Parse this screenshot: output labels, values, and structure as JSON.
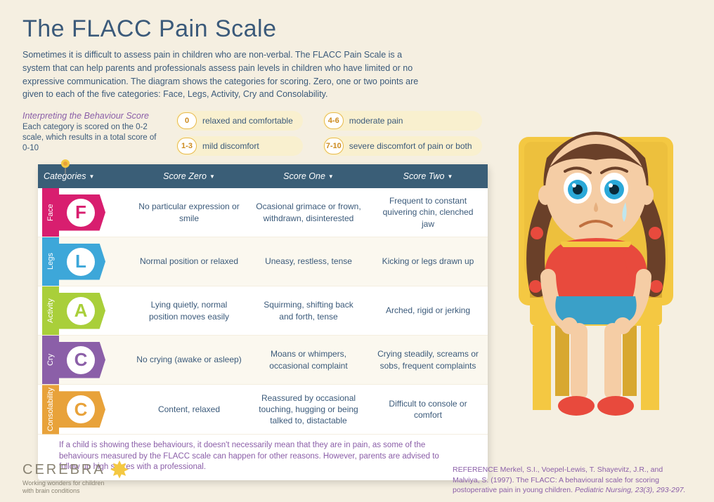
{
  "title": "The FLACC Pain Scale",
  "intro": "Sometimes it is difficult to assess pain in children who are non-verbal. The FLACC Pain Scale is a system that can help parents and professionals assess pain levels in children who have limited or no expressive communication. The diagram shows the categories for scoring. Zero, one or two points are given to each of the five categories: Face, Legs, Activity, Cry and Consolability.",
  "interpret": {
    "title": "Interpreting the Behaviour Score",
    "sub": "Each category is scored on the 0-2 scale, which results in a total score of 0-10"
  },
  "legend": [
    {
      "range": "0",
      "label": "relaxed and comfortable"
    },
    {
      "range": "4-6",
      "label": "moderate pain"
    },
    {
      "range": "1-3",
      "label": "mild discomfort"
    },
    {
      "range": "7-10",
      "label": "severe discomfort of pain or both"
    }
  ],
  "table": {
    "headers": [
      "Categories",
      "Score Zero",
      "Score One",
      "Score Two"
    ],
    "rows": [
      {
        "key": "face",
        "letter": "F",
        "name": "Face",
        "color": "#d81e6f",
        "alt": false,
        "s0": "No particular expression or smile",
        "s1": "Ocasional grimace or frown, withdrawn, disinterested",
        "s2": "Frequent to constant quivering chin, clenched jaw"
      },
      {
        "key": "legs",
        "letter": "L",
        "name": "Legs",
        "color": "#3da7d9",
        "alt": true,
        "s0": "Normal position or relaxed",
        "s1": "Uneasy, restless, tense",
        "s2": "Kicking or legs drawn up"
      },
      {
        "key": "activity",
        "letter": "A",
        "name": "Activity",
        "color": "#a9cf3a",
        "alt": false,
        "s0": "Lying quietly, normal position moves easily",
        "s1": "Squirming, shifting back and forth, tense",
        "s2": "Arched, rigid or jerking"
      },
      {
        "key": "cry",
        "letter": "C",
        "name": "Cry",
        "color": "#8b5fa8",
        "alt": true,
        "s0": "No crying (awake or asleep)",
        "s1": "Moans or whimpers, occasional complaint",
        "s2": "Crying steadily, screams or sobs, frequent complaints"
      },
      {
        "key": "cons",
        "letter": "C",
        "name": "Consolability",
        "color": "#e8a23a",
        "alt": false,
        "s0": "Content, relaxed",
        "s1": "Reassured by occasional touching, hugging or being talked to, distactable",
        "s2": "Difficult to console or comfort"
      }
    ],
    "note": "If a child is showing these behaviours, it doesn't necessarily mean that they are in pain, as some of the behaviours measured by the FLACC scale can happen for other reasons. However, parents are advised to follow up high scores with a professional."
  },
  "logo": {
    "name": "CEREBRA",
    "tagline": "Working wonders for children\nwith brain conditions"
  },
  "reference": "REFERENCE Merkel, S.I., Voepel-Lewis, T. Shayevitz, J.R., and Malviya, S. (1997). The FLACC: A behavioural scale for scoring postoperative pain in young children.",
  "reference_ital": "Pediatric Nursing, 23(3), 293-297.",
  "colors": {
    "bg": "#f5efe1",
    "header_bg": "#3a5e77",
    "text_primary": "#3b5a7a",
    "text_accent": "#8b5fa8",
    "legend_badge_border": "#e8b94a",
    "legend_bg": "#f9f0cf"
  },
  "child_art": {
    "hair": "#6a4029",
    "hair_tie": "#e84a3d",
    "skin": "#f5cda5",
    "eye_iris": "#2aa8d8",
    "shirt": "#e84a3d",
    "shirt_trim": "#f4c842",
    "shorts": "#3aa0c8",
    "shoes": "#e84a3d",
    "chair": "#f4c842",
    "chair_shadow": "#d8a830"
  }
}
